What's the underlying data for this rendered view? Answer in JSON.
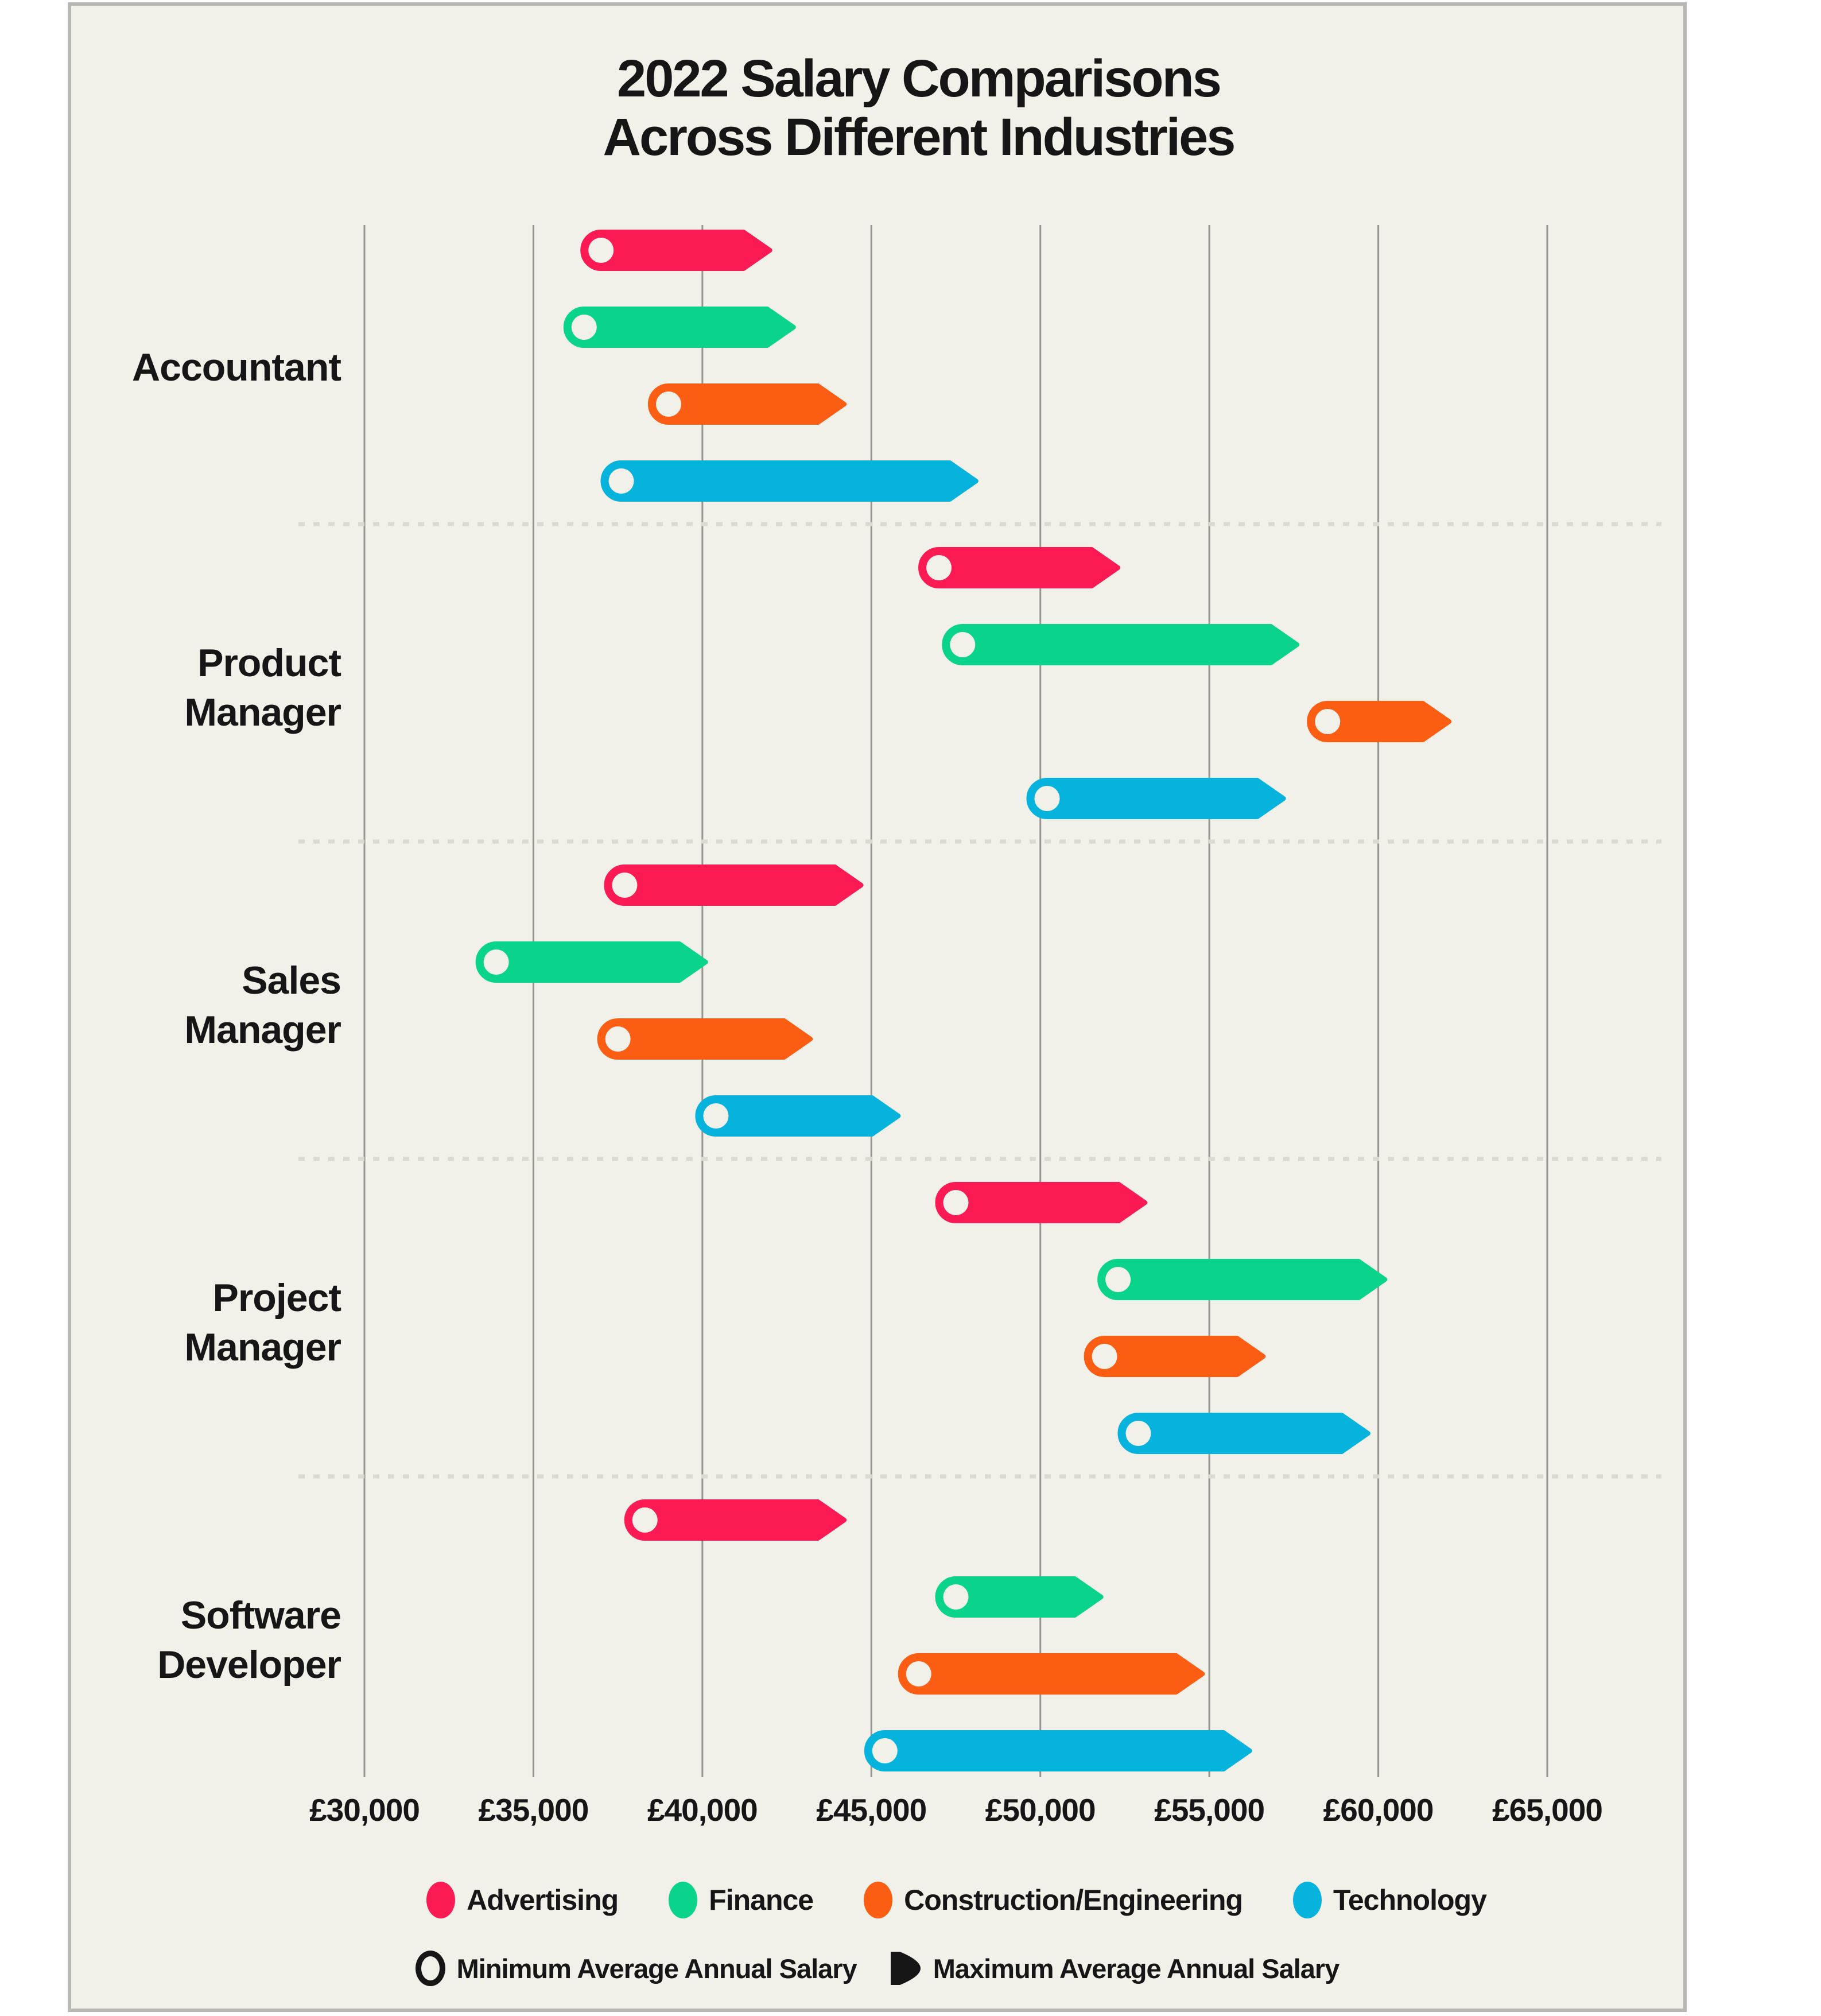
{
  "title": {
    "line1": "2022 Salary Comparisons",
    "line2": "Across Different Industries"
  },
  "colors": {
    "page_bg": "#FFFFFF",
    "card_bg": "#F1F0E9",
    "card_border": "#B8B7B3",
    "text": "#161616",
    "gridline": "#96958F",
    "separator": "#DBD9D0"
  },
  "chart_data": {
    "type": "dumbbell",
    "title": "2022 Salary Comparisons Across Different Industries",
    "orientation": "horizontal",
    "currency": "GBP",
    "x_axis": {
      "min": 30000,
      "max": 65000,
      "tick_step": 5000,
      "tick_labels": [
        "£30,000",
        "£35,000",
        "£40,000",
        "£45,000",
        "£50,000",
        "£55,000",
        "£60,000",
        "£65,000"
      ],
      "grid": "vertical-solid"
    },
    "categories": [
      "Accountant",
      "Product Manager",
      "Sales Manager",
      "Project Manager",
      "Software Developer"
    ],
    "category_label_lines": [
      [
        "Accountant"
      ],
      [
        "Product",
        "Manager"
      ],
      [
        "Sales",
        "Manager"
      ],
      [
        "Project",
        "Manager"
      ],
      [
        "Software",
        "Developer"
      ]
    ],
    "series": [
      {
        "name": "Advertising",
        "color": "#FB1A53",
        "values": [
          {
            "category": "Accountant",
            "min": 37000,
            "max": 42000
          },
          {
            "category": "Product Manager",
            "min": 47000,
            "max": 52300
          },
          {
            "category": "Sales Manager",
            "min": 37700,
            "max": 44700
          },
          {
            "category": "Project Manager",
            "min": 47500,
            "max": 53100
          },
          {
            "category": "Software Developer",
            "min": 38300,
            "max": 44200
          }
        ]
      },
      {
        "name": "Finance",
        "color": "#0AD48C",
        "values": [
          {
            "category": "Accountant",
            "min": 36500,
            "max": 42700
          },
          {
            "category": "Product Manager",
            "min": 47700,
            "max": 57600
          },
          {
            "category": "Sales Manager",
            "min": 33900,
            "max": 40100
          },
          {
            "category": "Project Manager",
            "min": 52300,
            "max": 60200
          },
          {
            "category": "Software Developer",
            "min": 47500,
            "max": 51800
          }
        ]
      },
      {
        "name": "Construction/Engineering",
        "color": "#FB5D12",
        "values": [
          {
            "category": "Accountant",
            "min": 39000,
            "max": 44200
          },
          {
            "category": "Product Manager",
            "min": 58500,
            "max": 62100
          },
          {
            "category": "Sales Manager",
            "min": 37500,
            "max": 43200
          },
          {
            "category": "Project Manager",
            "min": 51900,
            "max": 56600
          },
          {
            "category": "Software Developer",
            "min": 46400,
            "max": 54800
          }
        ]
      },
      {
        "name": "Technology",
        "color": "#06B3DC",
        "values": [
          {
            "category": "Accountant",
            "min": 37600,
            "max": 48100
          },
          {
            "category": "Product Manager",
            "min": 50200,
            "max": 57200
          },
          {
            "category": "Sales Manager",
            "min": 40400,
            "max": 45800
          },
          {
            "category": "Project Manager",
            "min": 52900,
            "max": 59700
          },
          {
            "category": "Software Developer",
            "min": 45400,
            "max": 56200
          }
        ]
      }
    ],
    "marker_legend": {
      "min_label": "Minimum Average Annual Salary",
      "max_label": "Maximum Average Annual Salary"
    }
  }
}
